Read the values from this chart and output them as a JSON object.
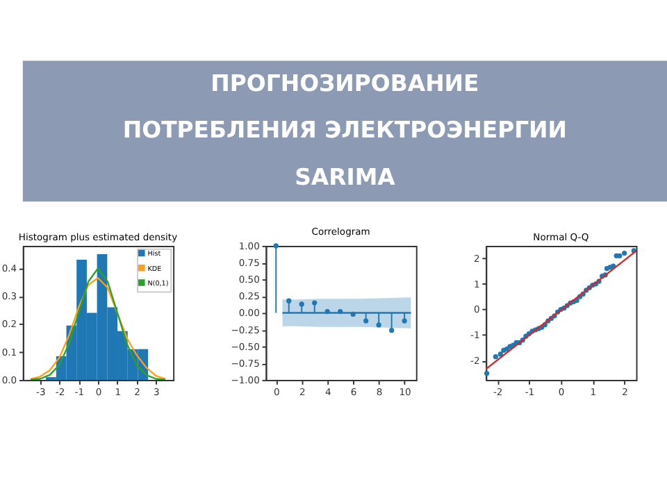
{
  "chart_data": [
    {
      "type": "histogram",
      "title": "Histogram plus estimated density",
      "legend": "top right",
      "grid": false,
      "xlim": [
        -3.9,
        3.9
      ],
      "xticks": [
        -3,
        -2,
        -1,
        0,
        1,
        2,
        3
      ],
      "ylim": [
        0,
        0.48
      ],
      "yticks": [
        {
          "value": 0,
          "label": "0.0"
        },
        {
          "value": 0.1,
          "label": "0.1"
        },
        {
          "value": 0.2,
          "label": "0.2"
        },
        {
          "value": 0.3,
          "label": "0.3"
        },
        {
          "value": 0.4,
          "label": "0.4"
        }
      ],
      "series": [
        {
          "name": "Hist",
          "type": "histogram",
          "color": "#1f77b4",
          "bins": [
            -2.7,
            -2.17,
            -1.64,
            -1.11,
            -0.58,
            -0.05,
            0.48,
            1.01,
            1.54,
            2.07,
            2.6
          ],
          "values": [
            0.01,
            0.085,
            0.195,
            0.43,
            0.24,
            0.45,
            0.26,
            0.175,
            0.11,
            0.11
          ]
        },
        {
          "name": "KDE",
          "type": "line",
          "color": "#ff9f1c",
          "x": [
            -3.5,
            -3,
            -2.5,
            -2,
            -1.5,
            -1,
            -0.5,
            0,
            0.5,
            1,
            1.5,
            2,
            2.5,
            3,
            3.5
          ],
          "values": [
            0.003,
            0.012,
            0.035,
            0.08,
            0.16,
            0.26,
            0.34,
            0.365,
            0.33,
            0.24,
            0.15,
            0.09,
            0.045,
            0.015,
            0.004
          ]
        },
        {
          "name": "N(0,1)",
          "type": "line",
          "color": "#2ca02c",
          "x": [
            -3.5,
            -3,
            -2.5,
            -2,
            -1.5,
            -1,
            -0.5,
            0,
            0.5,
            1,
            1.5,
            2,
            2.5,
            3,
            3.5
          ],
          "values": [
            0.001,
            0.004,
            0.018,
            0.054,
            0.13,
            0.242,
            0.352,
            0.399,
            0.352,
            0.242,
            0.13,
            0.054,
            0.018,
            0.004,
            0.001
          ]
        }
      ]
    },
    {
      "type": "lollipop",
      "title": "Correlogram",
      "grid": false,
      "xlim": [
        -0.8,
        10.9
      ],
      "xticks": [
        0,
        2,
        4,
        6,
        8,
        10
      ],
      "ylim": [
        -1,
        1
      ],
      "yticks": [
        {
          "value": -1,
          "label": "−1.00"
        },
        {
          "value": -0.75,
          "label": "−0.75"
        },
        {
          "value": -0.5,
          "label": "−0.50"
        },
        {
          "value": -0.25,
          "label": "−0.25"
        },
        {
          "value": 0,
          "label": "0.00"
        },
        {
          "value": 0.25,
          "label": "0.25"
        },
        {
          "value": 0.5,
          "label": "0.50"
        },
        {
          "value": 0.75,
          "label": "0.75"
        },
        {
          "value": 1,
          "label": "1.00"
        }
      ],
      "series": [
        {
          "type": "line",
          "color": "#1f77b4",
          "x": [
            0.5,
            1.5,
            2.5,
            3.5,
            4.5,
            5.5,
            6.5,
            7.5,
            8.5,
            9.5,
            10.5
          ],
          "values": [
            0,
            0,
            0,
            0,
            0,
            0,
            0,
            0,
            0,
            0,
            0
          ],
          "lower": [
            -0.2,
            -0.2,
            -0.205,
            -0.21,
            -0.21,
            -0.21,
            -0.21,
            -0.215,
            -0.22,
            -0.225,
            -0.23
          ],
          "upper": [
            0.2,
            0.2,
            0.205,
            0.21,
            0.21,
            0.21,
            0.21,
            0.215,
            0.22,
            0.225,
            0.23
          ]
        },
        {
          "type": "lollipop",
          "color": "#1f77b4",
          "x": [
            0,
            1,
            2,
            3,
            4,
            5,
            6,
            7,
            8,
            9,
            10
          ],
          "values": [
            1.0,
            0.18,
            0.13,
            0.15,
            0.02,
            0.02,
            -0.02,
            -0.12,
            -0.18,
            -0.26,
            -0.12
          ]
        }
      ]
    },
    {
      "type": "scatter",
      "title": "Normal Q-Q",
      "grid": false,
      "xlim": [
        -2.36,
        2.37
      ],
      "xticks": [
        -2,
        -1,
        0,
        1,
        2
      ],
      "ylim": [
        -2.76,
        2.49
      ],
      "yticks": [
        -2,
        -1,
        0,
        1,
        2
      ],
      "series": [
        {
          "type": "scatter",
          "color": "#1f77b4",
          "x": [
            -2.33,
            -2.05,
            -1.9,
            -1.8,
            -1.7,
            -1.6,
            -1.5,
            -1.4,
            -1.3,
            -1.2,
            -1.1,
            -1.0,
            -0.9,
            -0.8,
            -0.7,
            -0.6,
            -0.5,
            -0.4,
            -0.3,
            -0.2,
            -0.1,
            0,
            0.1,
            0.2,
            0.3,
            0.4,
            0.5,
            0.6,
            0.7,
            0.8,
            0.9,
            1.0,
            1.1,
            1.2,
            1.3,
            1.4,
            1.45,
            1.55,
            1.65,
            1.75,
            1.85,
            2.0,
            2.3
          ],
          "values": [
            -2.5,
            -1.85,
            -1.75,
            -1.6,
            -1.55,
            -1.45,
            -1.4,
            -1.3,
            -1.3,
            -1.2,
            -1.05,
            -0.95,
            -0.85,
            -0.8,
            -0.75,
            -0.7,
            -0.6,
            -0.45,
            -0.35,
            -0.25,
            -0.1,
            0,
            0.05,
            0.15,
            0.25,
            0.3,
            0.35,
            0.5,
            0.6,
            0.75,
            0.85,
            0.95,
            1.0,
            1.1,
            1.3,
            1.35,
            1.6,
            1.65,
            1.7,
            2.1,
            2.1,
            2.2,
            2.3
          ]
        },
        {
          "type": "line",
          "color": "#d62728",
          "x": [
            -2.36,
            2.37
          ],
          "values": [
            -2.34,
            2.29
          ]
        }
      ]
    },
    {
      "type": "other",
      "annotations": [
        "ПРОГНОЗИРОВАНИЕ",
        "ПОТРЕБЛЕНИЯ ЭЛЕКТРОЭНЕРГИИ",
        "SARIMA"
      ]
    }
  ]
}
